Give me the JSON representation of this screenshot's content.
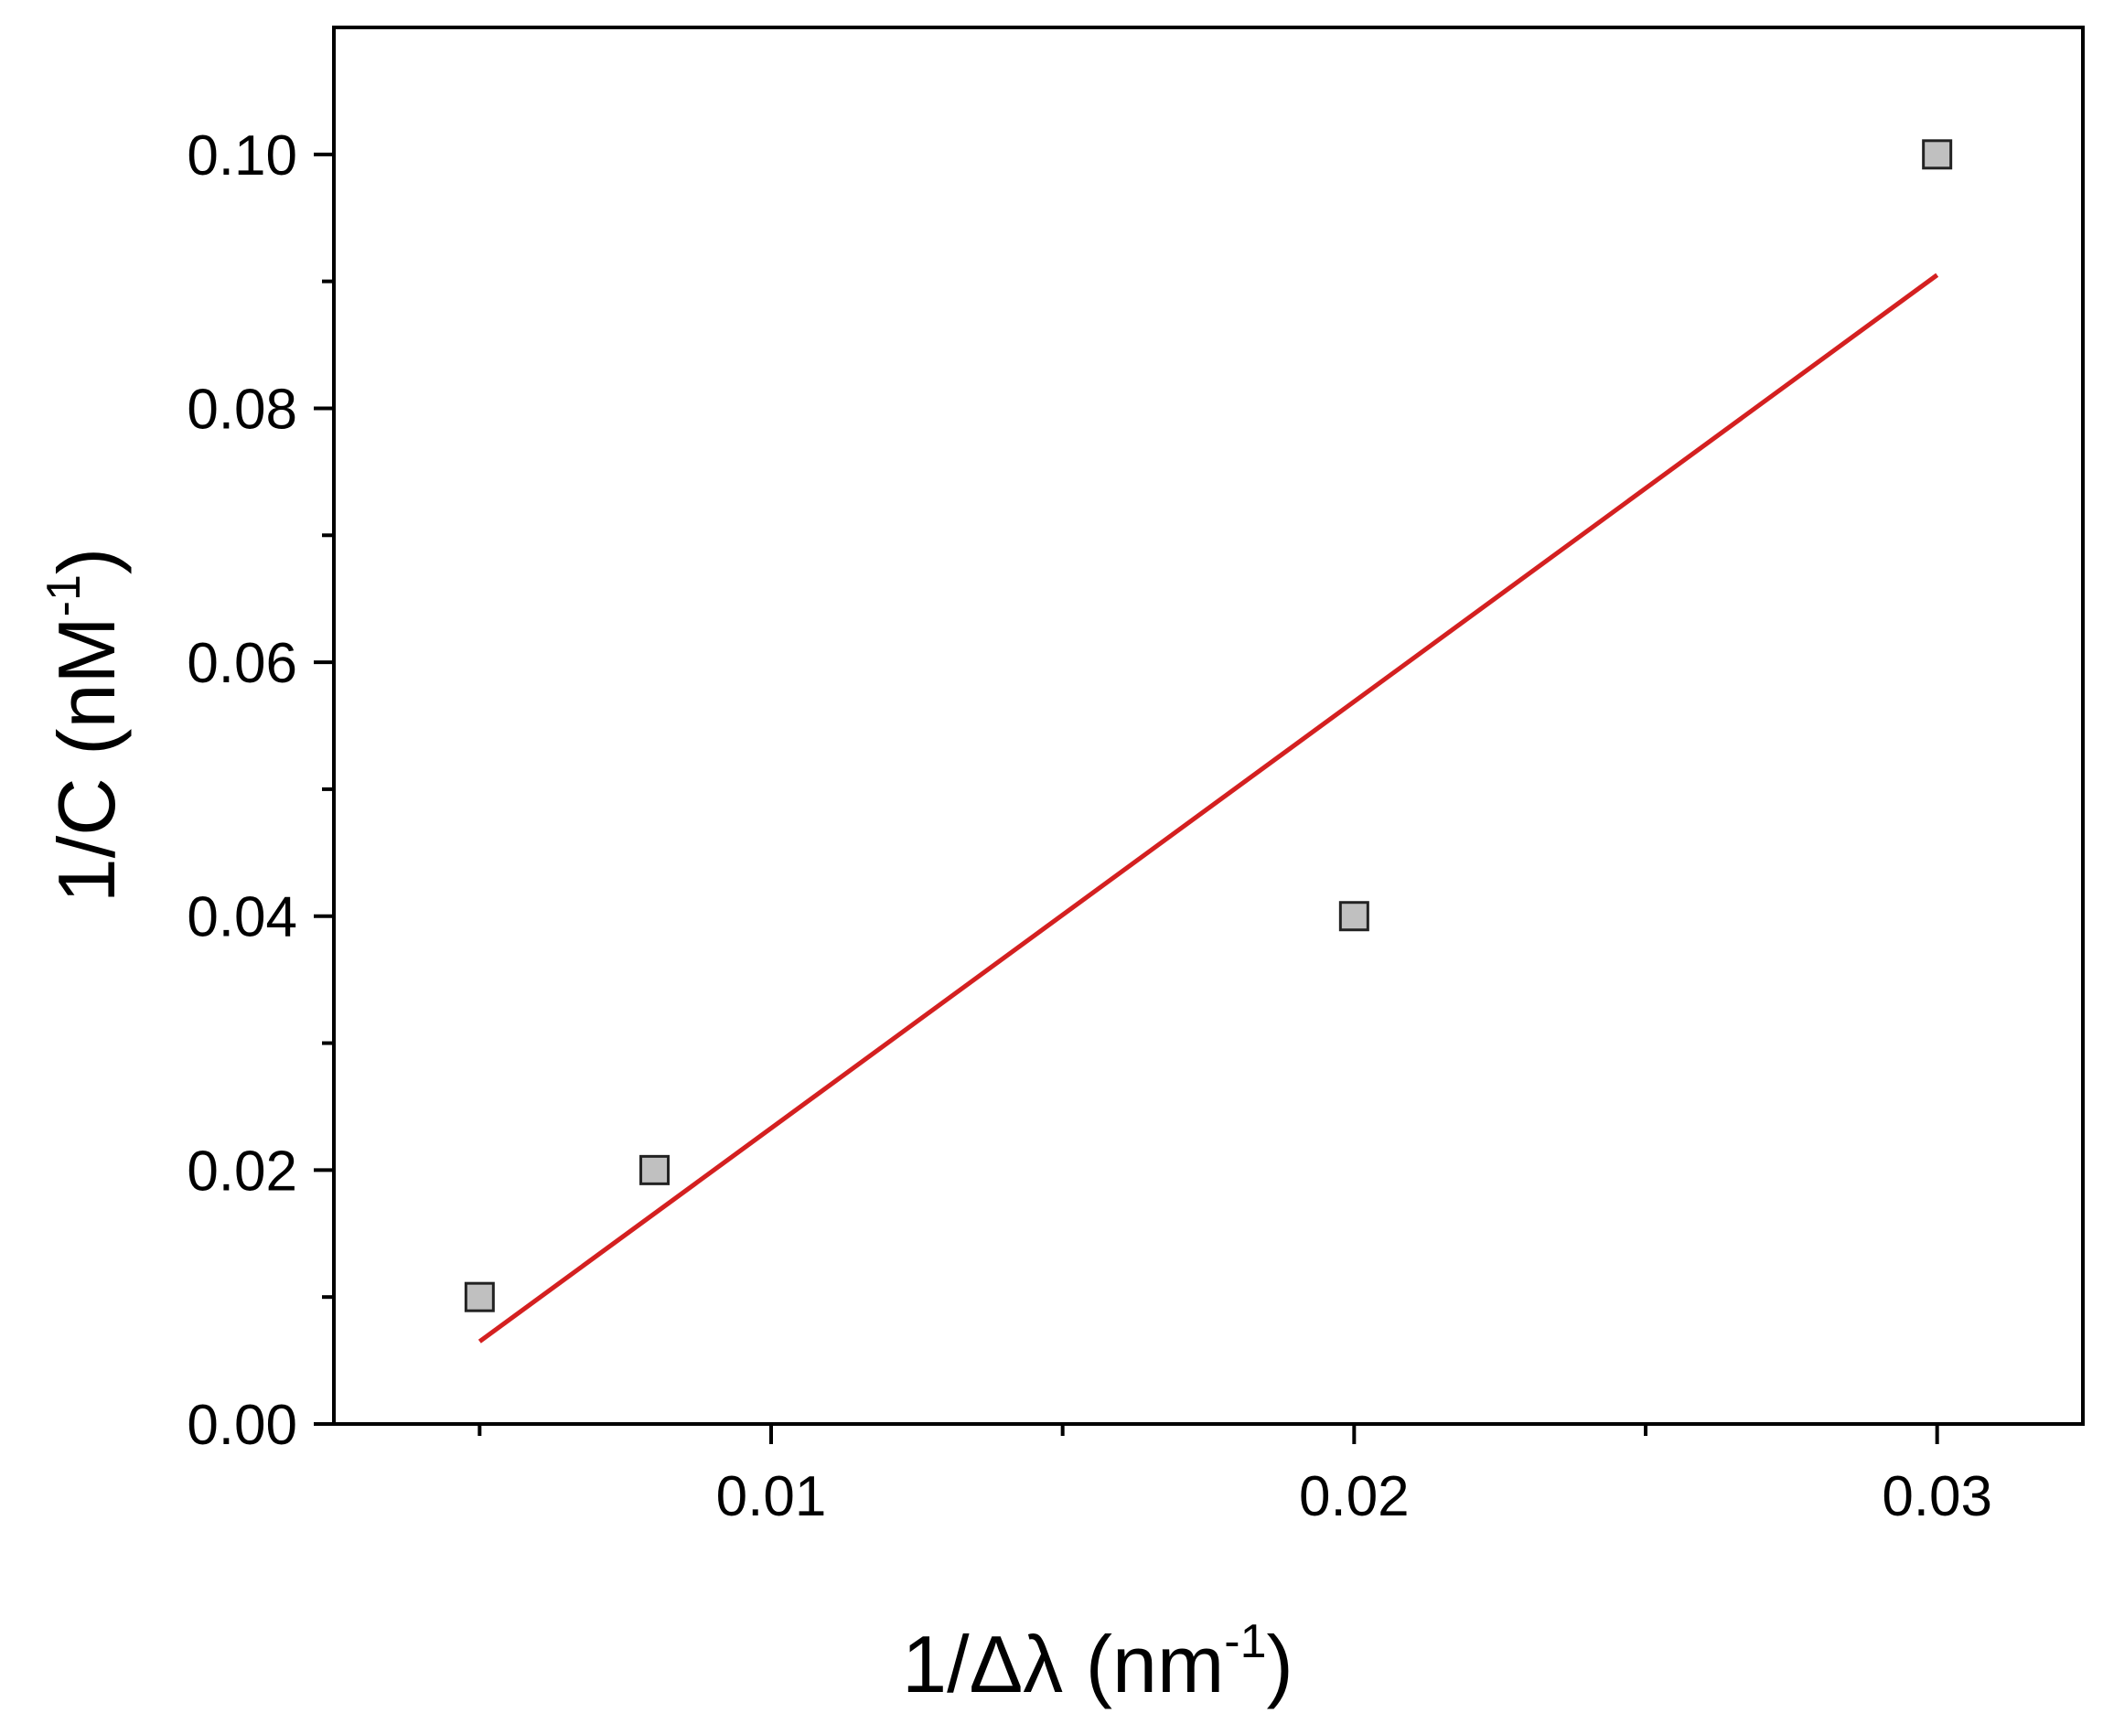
{
  "chart_data": {
    "type": "scatter",
    "title": "",
    "xlabel": {
      "main": "1/Δλ (nm",
      "sup": "-1",
      "tail": ")"
    },
    "ylabel": {
      "main": "1/C (nM",
      "sup": "-1",
      "tail": ")"
    },
    "xlim": [
      0.0025,
      0.0325
    ],
    "ylim": [
      0.0,
      0.11
    ],
    "x_ticks": [
      "0.01",
      "0.02",
      "0.03"
    ],
    "x_tick_values": [
      0.01,
      0.02,
      0.03
    ],
    "x_minor_ticks": [
      0.005,
      0.015,
      0.025
    ],
    "y_ticks": [
      "0.00",
      "0.02",
      "0.04",
      "0.06",
      "0.08",
      "0.10"
    ],
    "y_tick_values": [
      0.0,
      0.02,
      0.04,
      0.06,
      0.08,
      0.1
    ],
    "y_minor_ticks": [
      0.01,
      0.03,
      0.05,
      0.07,
      0.09
    ],
    "grid": false,
    "series": [
      {
        "kind": "points",
        "marker": "square",
        "color": "#c0c0c0",
        "points": [
          {
            "x": 0.005,
            "y": 0.01
          },
          {
            "x": 0.008,
            "y": 0.02
          },
          {
            "x": 0.02,
            "y": 0.04
          },
          {
            "x": 0.03,
            "y": 0.1
          }
        ]
      },
      {
        "kind": "fit-line",
        "color": "#d42020",
        "points": [
          {
            "x": 0.005,
            "y": 0.0065
          },
          {
            "x": 0.03,
            "y": 0.0905
          }
        ]
      }
    ]
  }
}
